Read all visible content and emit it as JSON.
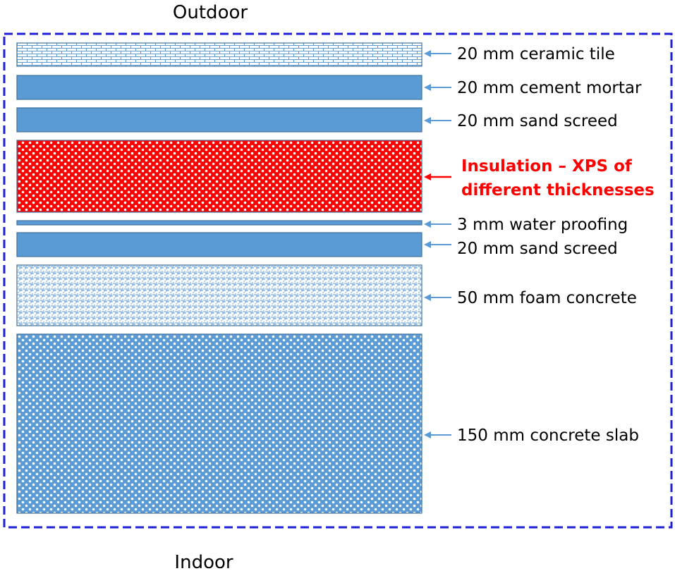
{
  "outdoor_label": "Outdoor",
  "indoor_label": "Indoor",
  "colors": {
    "border": "#1f1fd6",
    "layer_blue": "#5b9bd5",
    "layer_stroke": "#41719c",
    "insulation_red": "#ff0000",
    "arrow_blue": "#5b9bd5",
    "emphasis_text": "#ff0000"
  },
  "layers": [
    {
      "id": "ceramic-tile",
      "pattern": "brick",
      "label_lines": [
        "20 mm ceramic tile"
      ],
      "emphasis": false
    },
    {
      "id": "cement-mortar",
      "pattern": "solid",
      "label_lines": [
        "20 mm cement mortar"
      ],
      "emphasis": false
    },
    {
      "id": "sand-screed-top",
      "pattern": "solid",
      "label_lines": [
        "20 mm sand screed"
      ],
      "emphasis": false
    },
    {
      "id": "insulation-xps",
      "pattern": "dots-red",
      "label_lines": [
        "Insulation – XPS of",
        "different thicknesses"
      ],
      "emphasis": true
    },
    {
      "id": "water-proofing",
      "pattern": "solid",
      "label_lines": [
        "3 mm water proofing"
      ],
      "emphasis": false
    },
    {
      "id": "sand-screed-bottom",
      "pattern": "solid",
      "label_lines": [
        "20 mm sand screed"
      ],
      "emphasis": false
    },
    {
      "id": "foam-concrete",
      "pattern": "weave",
      "label_lines": [
        "50 mm foam concrete"
      ],
      "emphasis": false
    },
    {
      "id": "concrete-slab",
      "pattern": "dots-blue",
      "label_lines": [
        "150 mm concrete slab"
      ],
      "emphasis": false
    }
  ]
}
